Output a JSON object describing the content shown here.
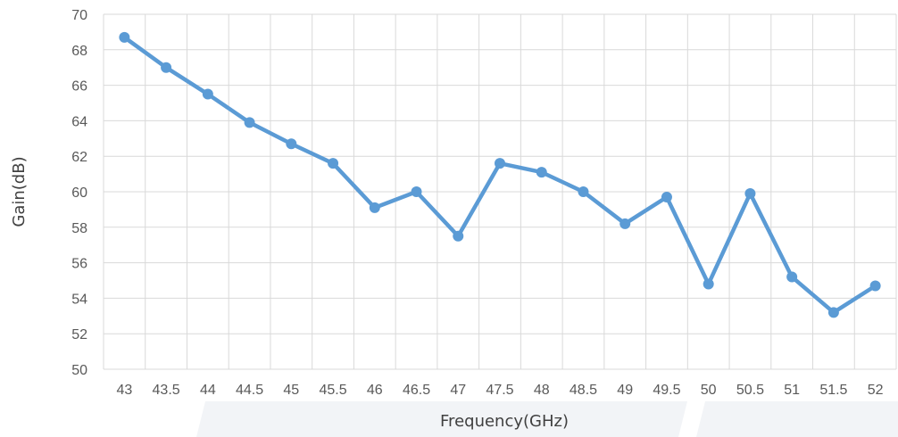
{
  "chart_data": {
    "type": "line",
    "xlabel": "Frequency(GHz)",
    "ylabel": "Gain(dB)",
    "categories": [
      "43",
      "43.5",
      "44",
      "44.5",
      "45",
      "45.5",
      "46",
      "46.5",
      "47",
      "47.5",
      "48",
      "48.5",
      "49",
      "49.5",
      "50",
      "50.5",
      "51",
      "51.5",
      "52"
    ],
    "ylim": [
      50,
      70
    ],
    "yticks": [
      "50",
      "52",
      "54",
      "56",
      "58",
      "60",
      "62",
      "64",
      "66",
      "68",
      "70"
    ],
    "series": [
      {
        "values": [
          68.7,
          67.0,
          65.5,
          63.9,
          62.7,
          61.6,
          59.1,
          60.0,
          57.5,
          61.6,
          61.1,
          60.0,
          58.2,
          59.7,
          54.8,
          59.9,
          55.2,
          53.2,
          54.7
        ]
      }
    ],
    "line_color": "#5b9bd5",
    "grid": true,
    "legend": "none"
  }
}
